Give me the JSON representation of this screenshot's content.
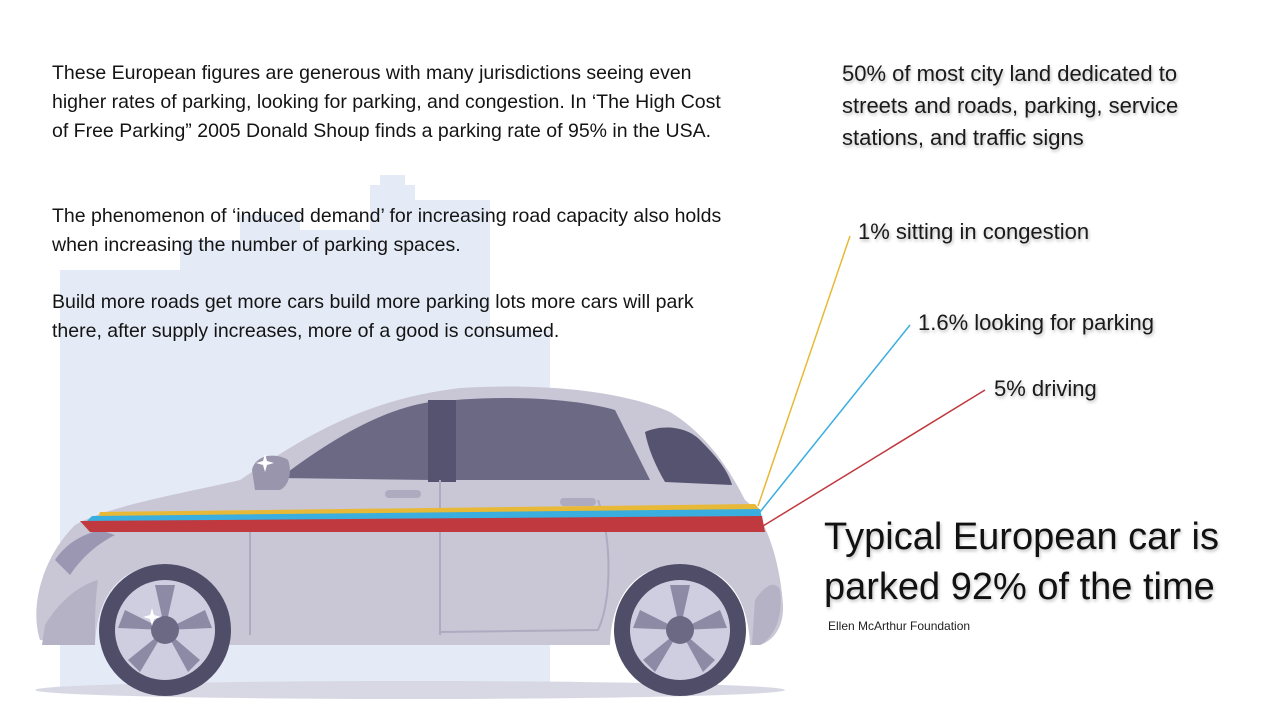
{
  "paragraphs": [
    "These European figures are generous with many jurisdictions seeing even higher rates of parking, looking for parking, and congestion. In ‘The High Cost of Free Parking” 2005 Donald Shoup finds a parking rate of 95% in the USA.",
    "The phenomenon of ‘induced demand’ for increasing road capacity also holds when increasing the number of parking spaces.",
    "Build more roads get more cars build more parking lots more cars will park there, after supply increases, more of a good is consumed."
  ],
  "callouts": {
    "land": "50% of most city land dedicated to streets and roads, parking, service stations, and traffic signs",
    "congestion": "1% sitting in congestion",
    "looking_for_parking": "1.6% looking for parking",
    "driving": "5% driving"
  },
  "headline": "Typical European car is parked 92% of the time",
  "source": "Ellen McArthur Foundation",
  "colors": {
    "congestion": "#e8b936",
    "looking_for_parking": "#3aaede",
    "driving": "#c0393f",
    "car_body": "#c9c6d6",
    "city_silhouette": "#e4ebf6"
  }
}
